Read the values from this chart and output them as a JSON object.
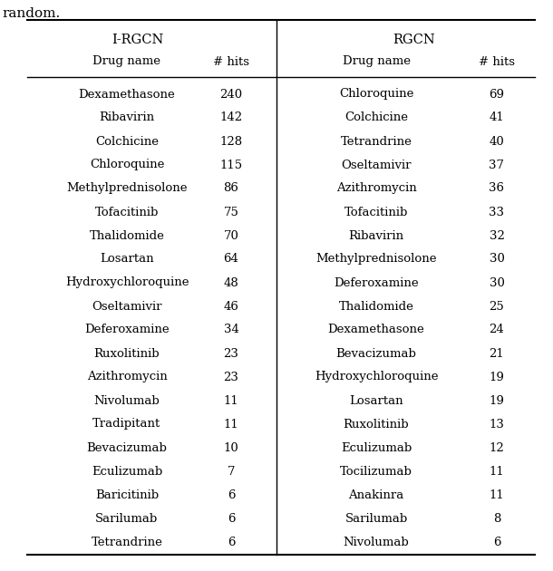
{
  "title_text": "random.",
  "col1_header": "I-RGCN",
  "col2_header": "RGCN",
  "sub_col1": "Drug name",
  "sub_col2": "# hits",
  "sub_col3": "Drug name",
  "sub_col4": "# hits",
  "irgcn_drugs": [
    "Dexamethasone",
    "Ribavirin",
    "Colchicine",
    "Chloroquine",
    "Methylprednisolone",
    "Tofacitinib",
    "Thalidomide",
    "Losartan",
    "Hydroxychloroquine",
    "Oseltamivir",
    "Deferoxamine",
    "Ruxolitinib",
    "Azithromycin",
    "Nivolumab",
    "Tradipitant",
    "Bevacizumab",
    "Eculizumab",
    "Baricitinib",
    "Sarilumab",
    "Tetrandrine"
  ],
  "irgcn_hits": [
    240,
    142,
    128,
    115,
    86,
    75,
    70,
    64,
    48,
    46,
    34,
    23,
    23,
    11,
    11,
    10,
    7,
    6,
    6,
    6
  ],
  "rgcn_drugs": [
    "Chloroquine",
    "Colchicine",
    "Tetrandrine",
    "Oseltamivir",
    "Azithromycin",
    "Tofacitinib",
    "Ribavirin",
    "Methylprednisolone",
    "Deferoxamine",
    "Thalidomide",
    "Dexamethasone",
    "Bevacizumab",
    "Hydroxychloroquine",
    "Losartan",
    "Ruxolitinib",
    "Eculizumab",
    "Tocilizumab",
    "Anakinra",
    "Sarilumab",
    "Nivolumab"
  ],
  "rgcn_hits": [
    69,
    41,
    40,
    37,
    36,
    33,
    32,
    30,
    30,
    25,
    24,
    21,
    19,
    19,
    13,
    12,
    11,
    11,
    8,
    6
  ],
  "bg_color": "#ffffff",
  "text_color": "#000000",
  "fontsize": 9.5,
  "header_fontsize": 10.5,
  "title_fontsize": 11
}
